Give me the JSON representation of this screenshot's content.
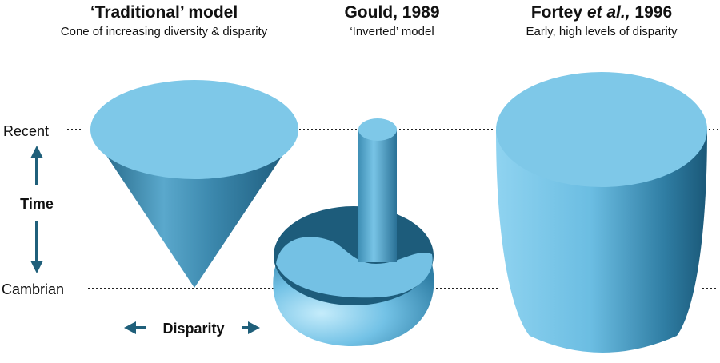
{
  "models": [
    {
      "title": "‘Traditional’ model",
      "subtitle": "Cone of increasing diversity & disparity"
    },
    {
      "title": "Gould, 1989",
      "subtitle": "‘Inverted’ model"
    },
    {
      "title_parts": [
        "Fortey ",
        "et al.,",
        " 1996"
      ],
      "subtitle": "Early, high levels of disparity"
    }
  ],
  "axis": {
    "recent": "Recent",
    "time": "Time",
    "cambrian": "Cambrian",
    "disparity": "Disparity"
  }
}
